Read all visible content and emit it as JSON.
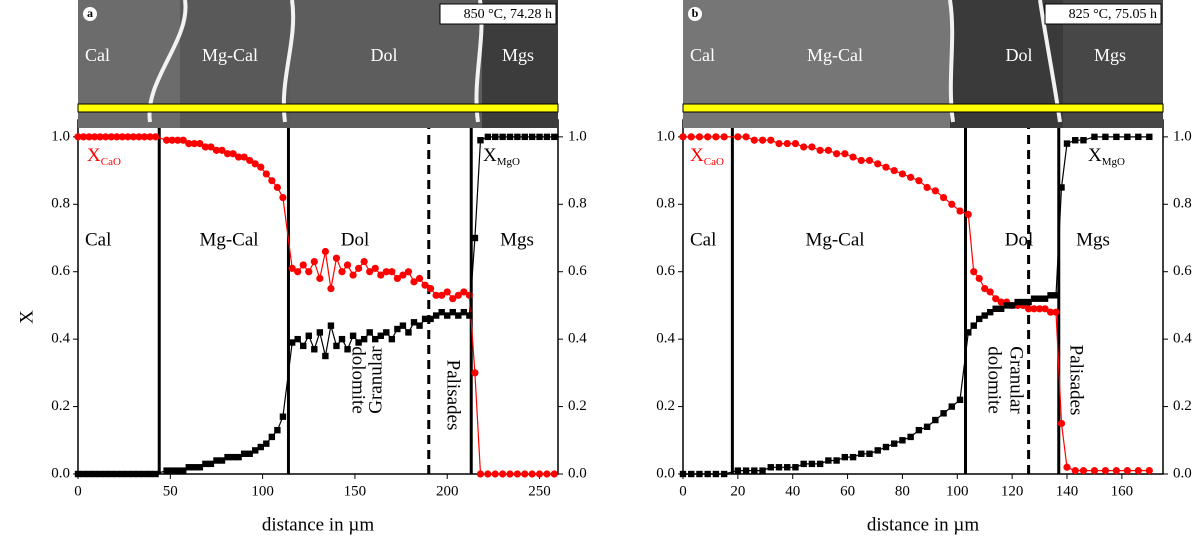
{
  "chart_data": [
    {
      "type": "line",
      "panel": "a",
      "image_label": "850 °C, 74.28 h",
      "image_labels": [
        "Cal",
        "Mg-Cal",
        "Dol",
        "Mgs"
      ],
      "annotations": [
        "Cal",
        "Mg-Cal",
        "Dol",
        "Mgs",
        "Granular",
        "dolomite",
        "Palisades"
      ],
      "ylabel": "X",
      "xlabel": "distance in µm",
      "xlim": [
        0,
        260
      ],
      "xticks": [
        0,
        50,
        100,
        150,
        200,
        250
      ],
      "ylim": [
        0,
        1.05
      ],
      "yticks": [
        {
          "value": 0,
          "label": "0.0"
        },
        {
          "value": 0.2,
          "label": "0.2"
        },
        {
          "value": 0.4,
          "label": "0.4"
        },
        {
          "value": 0.6,
          "label": "0.6"
        },
        {
          "value": 0.8,
          "label": "0.8"
        },
        {
          "value": 1,
          "label": "1.0"
        }
      ],
      "y2lim": [
        0,
        1.05
      ],
      "y2ticks": [
        {
          "value": 0,
          "label": "0.0"
        },
        {
          "value": 0.2,
          "label": "0.2"
        },
        {
          "value": 0.4,
          "label": "0.4"
        },
        {
          "value": 0.6,
          "label": "0.6"
        },
        {
          "value": 0.8,
          "label": "0.8"
        },
        {
          "value": 1,
          "label": "1.0"
        }
      ],
      "boundaries": [
        44,
        114,
        213
      ],
      "dashed_lines": [
        190
      ],
      "x": [
        0,
        3,
        6,
        9,
        12,
        15,
        18,
        21,
        24,
        27,
        30,
        33,
        36,
        39,
        42,
        48,
        51,
        54,
        57,
        60,
        63,
        66,
        69,
        72,
        75,
        78,
        81,
        84,
        87,
        90,
        93,
        96,
        99,
        102,
        105,
        108,
        111,
        116,
        119,
        122,
        125,
        128,
        131,
        134,
        137,
        140,
        143,
        146,
        149,
        152,
        155,
        158,
        161,
        164,
        167,
        170,
        173,
        176,
        179,
        182,
        185,
        188,
        191,
        194,
        197,
        200,
        203,
        206,
        209,
        212,
        215,
        218,
        222,
        226,
        230,
        234,
        238,
        242,
        246,
        250,
        254,
        258
      ],
      "series": [
        {
          "label": "X",
          "label_sub": "CaO",
          "color": "#ff0000",
          "marker": "circle",
          "values": [
            1,
            1,
            1,
            1,
            1,
            1,
            1,
            1,
            1,
            1,
            1,
            1,
            1,
            1,
            1,
            0.99,
            0.99,
            0.99,
            0.99,
            0.98,
            0.98,
            0.98,
            0.97,
            0.97,
            0.96,
            0.96,
            0.95,
            0.95,
            0.94,
            0.94,
            0.93,
            0.92,
            0.91,
            0.89,
            0.87,
            0.85,
            0.82,
            0.61,
            0.6,
            0.62,
            0.6,
            0.63,
            0.58,
            0.66,
            0.55,
            0.64,
            0.6,
            0.62,
            0.59,
            0.61,
            0.63,
            0.6,
            0.61,
            0.59,
            0.6,
            0.6,
            0.58,
            0.59,
            0.6,
            0.57,
            0.58,
            0.56,
            0.55,
            0.53,
            0.53,
            0.54,
            0.52,
            0.53,
            0.54,
            0.53,
            0.3,
            0,
            0,
            0,
            0,
            0,
            0,
            0,
            0,
            0,
            0,
            0
          ]
        },
        {
          "label": "X",
          "label_sub": "MgO",
          "color": "#000000",
          "marker": "square",
          "values": [
            0,
            0,
            0,
            0,
            0,
            0,
            0,
            0,
            0,
            0,
            0,
            0,
            0,
            0,
            0,
            0.01,
            0.01,
            0.01,
            0.01,
            0.02,
            0.02,
            0.02,
            0.03,
            0.03,
            0.04,
            0.04,
            0.05,
            0.05,
            0.05,
            0.06,
            0.06,
            0.07,
            0.08,
            0.09,
            0.11,
            0.13,
            0.17,
            0.39,
            0.4,
            0.38,
            0.41,
            0.37,
            0.42,
            0.35,
            0.44,
            0.38,
            0.4,
            0.37,
            0.41,
            0.39,
            0.4,
            0.42,
            0.4,
            0.41,
            0.42,
            0.4,
            0.43,
            0.44,
            0.42,
            0.45,
            0.44,
            0.46,
            0.46,
            0.47,
            0.48,
            0.47,
            0.48,
            0.47,
            0.48,
            0.47,
            0.7,
            0.99,
            1,
            1,
            1,
            1,
            1,
            1,
            1,
            1,
            1,
            1
          ]
        }
      ]
    },
    {
      "type": "line",
      "panel": "b",
      "image_label": "825 °C, 75.05 h",
      "image_labels": [
        "Cal",
        "Mg-Cal",
        "Dol",
        "Mgs"
      ],
      "annotations": [
        "Cal",
        "Mg-Cal",
        "Dol",
        "Mgs",
        "Granular",
        "dolomite",
        "Palisades"
      ],
      "xlabel": "distance in µm",
      "xlim": [
        0,
        175
      ],
      "xticks": [
        0,
        20,
        40,
        60,
        80,
        100,
        120,
        140,
        160
      ],
      "ylim": [
        0,
        1.05
      ],
      "yticks": [
        {
          "value": 0,
          "label": "0.0"
        },
        {
          "value": 0.2,
          "label": "0.2"
        },
        {
          "value": 0.4,
          "label": "0.4"
        },
        {
          "value": 0.6,
          "label": "0.6"
        },
        {
          "value": 0.8,
          "label": "0.8"
        },
        {
          "value": 1,
          "label": "1.0"
        }
      ],
      "y2lim": [
        0,
        1.05
      ],
      "y2ticks": [
        {
          "value": 0,
          "label": "0.0"
        },
        {
          "value": 0.2,
          "label": "0.2"
        },
        {
          "value": 0.4,
          "label": "0.4"
        },
        {
          "value": 0.6,
          "label": "0.6"
        },
        {
          "value": 0.8,
          "label": "0.8"
        },
        {
          "value": 1,
          "label": "1.0"
        }
      ],
      "boundaries": [
        18,
        103,
        137
      ],
      "dashed_lines": [
        126
      ],
      "x": [
        0,
        3,
        6,
        9,
        12,
        15,
        20,
        23,
        26,
        29,
        32,
        35,
        38,
        41,
        44,
        47,
        50,
        53,
        56,
        59,
        62,
        65,
        68,
        71,
        74,
        77,
        80,
        83,
        86,
        89,
        92,
        95,
        98,
        101,
        104,
        106,
        108,
        110,
        112,
        114,
        116,
        118,
        120,
        122,
        124,
        126,
        128,
        130,
        132,
        134,
        136,
        138,
        140,
        143,
        146,
        150,
        154,
        158,
        162,
        166,
        170
      ],
      "series": [
        {
          "label": "X",
          "label_sub": "CaO",
          "color": "#ff0000",
          "marker": "circle",
          "values": [
            1,
            1,
            1,
            1,
            1,
            1,
            1,
            1,
            0.99,
            0.99,
            0.99,
            0.98,
            0.98,
            0.98,
            0.97,
            0.97,
            0.96,
            0.96,
            0.95,
            0.95,
            0.94,
            0.93,
            0.93,
            0.92,
            0.91,
            0.9,
            0.89,
            0.88,
            0.87,
            0.85,
            0.84,
            0.82,
            0.8,
            0.78,
            0.77,
            0.6,
            0.58,
            0.55,
            0.54,
            0.52,
            0.51,
            0.51,
            0.5,
            0.5,
            0.5,
            0.49,
            0.49,
            0.49,
            0.49,
            0.48,
            0.48,
            0.15,
            0.02,
            0.01,
            0.01,
            0.01,
            0.01,
            0.01,
            0.01,
            0.01,
            0.01
          ]
        },
        {
          "label": "X",
          "label_sub": "MgO",
          "color": "#000000",
          "marker": "square",
          "values": [
            0,
            0,
            0,
            0,
            0,
            0,
            0.01,
            0.01,
            0.01,
            0.01,
            0.02,
            0.02,
            0.02,
            0.02,
            0.03,
            0.03,
            0.03,
            0.04,
            0.04,
            0.05,
            0.05,
            0.06,
            0.06,
            0.07,
            0.08,
            0.09,
            0.1,
            0.11,
            0.13,
            0.14,
            0.16,
            0.18,
            0.2,
            0.22,
            0.42,
            0.44,
            0.46,
            0.47,
            0.48,
            0.49,
            0.49,
            0.5,
            0.5,
            0.51,
            0.51,
            0.51,
            0.52,
            0.52,
            0.52,
            0.53,
            0.53,
            0.85,
            0.98,
            0.99,
            0.99,
            1,
            1,
            1,
            1,
            1,
            1
          ]
        }
      ]
    }
  ]
}
